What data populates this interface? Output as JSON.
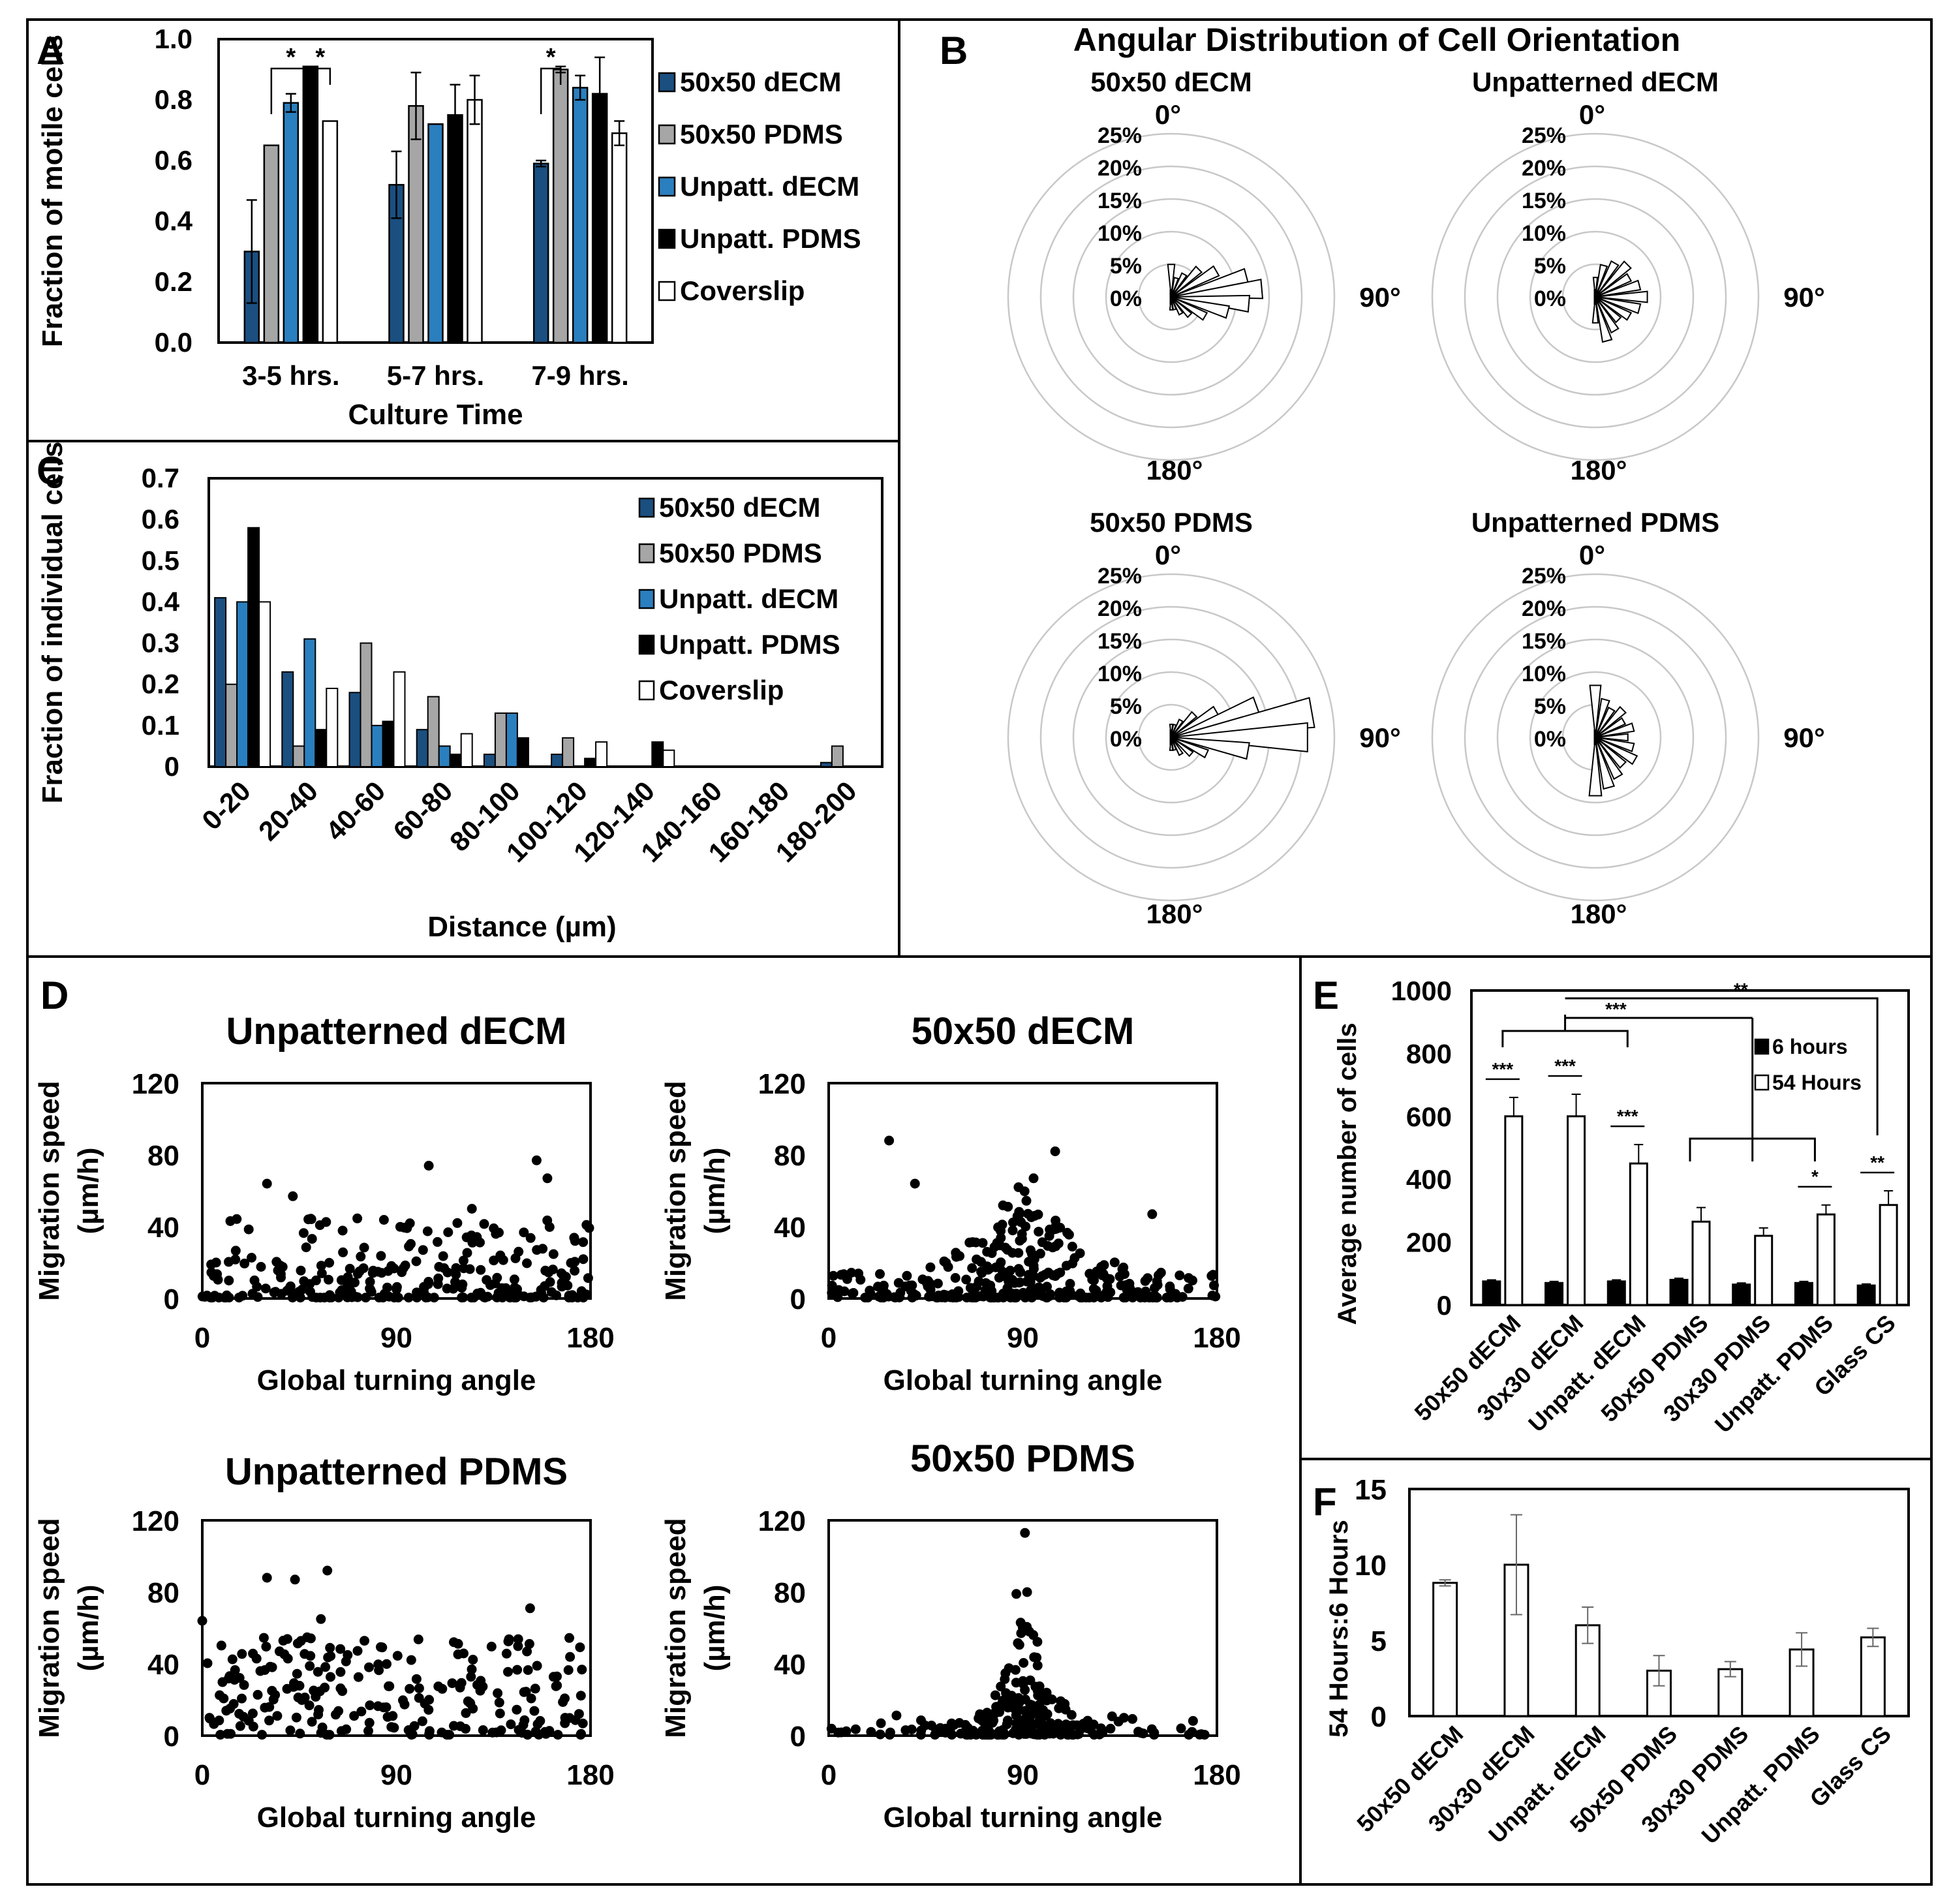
{
  "colors": {
    "dark_blue": "#1a4f80",
    "gray": "#a6a6a6",
    "light_blue": "#2a7fbf",
    "black": "#000000",
    "white": "#ffffff",
    "grid": "#c8c8c8"
  },
  "chart_data": [
    {
      "panel_letter": "A",
      "type": "bar",
      "ylabel": "Fraction of motile cells",
      "xlabel": "Culture Time",
      "ylim": [
        0,
        1.0
      ],
      "yticks": [
        "1.0",
        "0.8",
        "0.6",
        "0.4",
        "0.2",
        "0.0"
      ],
      "categories": [
        "3-5 hrs.",
        "5-7 hrs.",
        "7-9 hrs."
      ],
      "series": [
        {
          "name": "50x50 dECM",
          "color": "dark_blue",
          "values": [
            0.3,
            0.52,
            0.59
          ],
          "errors": [
            0.17,
            0.11,
            0.01
          ]
        },
        {
          "name": "50x50 PDMS",
          "color": "gray",
          "values": [
            0.65,
            0.78,
            0.9
          ],
          "errors": [
            0.0,
            0.11,
            0.01
          ]
        },
        {
          "name": "Unpatt. dECM",
          "color": "light_blue",
          "values": [
            0.79,
            0.72,
            0.84
          ],
          "errors": [
            0.03,
            0.0,
            0.04
          ]
        },
        {
          "name": "Unpatt. PDMS",
          "color": "black",
          "values": [
            0.91,
            0.75,
            0.82
          ],
          "errors": [
            0.0,
            0.1,
            0.12
          ]
        },
        {
          "name": "Coverslip",
          "color": "white",
          "values": [
            0.73,
            0.8,
            0.69
          ],
          "errors": [
            0.0,
            0.08,
            0.04
          ]
        }
      ],
      "significance": [
        "*",
        "*",
        "*"
      ]
    },
    {
      "panel_letter": "C",
      "type": "bar",
      "ylabel": "Fraction of individual cells",
      "xlabel": "Distance (µm)",
      "ylim": [
        0,
        0.7
      ],
      "yticks": [
        "0.7",
        "0.6",
        "0.5",
        "0.4",
        "0.3",
        "0.2",
        "0.1",
        "0"
      ],
      "categories": [
        "0-20",
        "20-40",
        "40-60",
        "60-80",
        "80-100",
        "100-120",
        "120-140",
        "140-160",
        "160-180",
        "180-200"
      ],
      "series": [
        {
          "name": "50x50 dECM",
          "color": "dark_blue",
          "values": [
            0.41,
            0.23,
            0.18,
            0.09,
            0.03,
            0.03,
            0.0,
            0.0,
            0.0,
            0.01
          ]
        },
        {
          "name": "50x50 PDMS",
          "color": "gray",
          "values": [
            0.2,
            0.05,
            0.3,
            0.17,
            0.13,
            0.07,
            0.0,
            0.0,
            0.0,
            0.05
          ]
        },
        {
          "name": "Unpatt. dECM",
          "color": "light_blue",
          "values": [
            0.4,
            0.31,
            0.1,
            0.05,
            0.13,
            0.0,
            0.0,
            0.0,
            0.0,
            0.0
          ]
        },
        {
          "name": "Unpatt. PDMS",
          "color": "black",
          "values": [
            0.58,
            0.09,
            0.11,
            0.03,
            0.07,
            0.02,
            0.06,
            0.0,
            0.0,
            0.0
          ]
        },
        {
          "name": "Coverslip",
          "color": "white",
          "values": [
            0.4,
            0.19,
            0.23,
            0.08,
            0.0,
            0.06,
            0.04,
            0.0,
            0.0,
            0.0
          ]
        }
      ]
    },
    {
      "panel_letter": "B",
      "type": "polar-rose",
      "title": "Angular Distribution of Cell Orientation",
      "ring_labels": [
        "25%",
        "20%",
        "15%",
        "10%",
        "5%",
        "0%"
      ],
      "angle_labels": {
        "top": "0°",
        "right": "90°",
        "bottom": "180°"
      },
      "rmax": 25,
      "roses": [
        {
          "title": "50x50 dECM",
          "petals": [
            [
              0,
              5
            ],
            [
              15,
              3
            ],
            [
              30,
              4
            ],
            [
              45,
              6
            ],
            [
              60,
              8
            ],
            [
              75,
              12
            ],
            [
              85,
              14
            ],
            [
              95,
              12
            ],
            [
              105,
              9
            ],
            [
              120,
              6
            ],
            [
              135,
              4
            ],
            [
              150,
              3
            ],
            [
              165,
              2
            ],
            [
              180,
              2
            ]
          ]
        },
        {
          "title": "Unpatterned dECM",
          "petals": [
            [
              0,
              3
            ],
            [
              15,
              5
            ],
            [
              30,
              6
            ],
            [
              45,
              7
            ],
            [
              60,
              6
            ],
            [
              75,
              7
            ],
            [
              90,
              8
            ],
            [
              105,
              7
            ],
            [
              120,
              6
            ],
            [
              135,
              5
            ],
            [
              150,
              6
            ],
            [
              165,
              7
            ],
            [
              180,
              4
            ]
          ]
        },
        {
          "title": "50x50 PDMS",
          "petals": [
            [
              0,
              2
            ],
            [
              15,
              2
            ],
            [
              30,
              3
            ],
            [
              45,
              5
            ],
            [
              60,
              8
            ],
            [
              70,
              14
            ],
            [
              80,
              22
            ],
            [
              90,
              21
            ],
            [
              100,
              12
            ],
            [
              115,
              6
            ],
            [
              130,
              4
            ],
            [
              150,
              3
            ],
            [
              165,
              2
            ],
            [
              180,
              2
            ]
          ]
        },
        {
          "title": "Unpatterned PDMS",
          "petals": [
            [
              0,
              8
            ],
            [
              15,
              6
            ],
            [
              30,
              5
            ],
            [
              45,
              6
            ],
            [
              60,
              5
            ],
            [
              75,
              6
            ],
            [
              90,
              5
            ],
            [
              105,
              6
            ],
            [
              120,
              7
            ],
            [
              135,
              6
            ],
            [
              150,
              7
            ],
            [
              165,
              8
            ],
            [
              180,
              9
            ]
          ]
        }
      ]
    },
    {
      "panel_letter": "D",
      "type": "scatter",
      "xlabel": "Global turning angle",
      "ylabel": "Migration speed (µm/h)",
      "xlim": [
        0,
        180
      ],
      "ylim": [
        0,
        120
      ],
      "xticks": [
        "0",
        "90",
        "180"
      ],
      "yticks": [
        "120",
        "80",
        "40",
        "0"
      ],
      "plots": [
        {
          "title": "Unpatterned dECM",
          "pattern": "uniform",
          "n": 260,
          "seed": 11,
          "outliers": [
            [
              30,
              64
            ],
            [
              42,
              57
            ],
            [
              105,
              74
            ],
            [
              155,
              77
            ],
            [
              160,
              67
            ],
            [
              125,
              50
            ]
          ]
        },
        {
          "title": "50x50 dECM",
          "pattern": "peak",
          "n": 330,
          "seed": 23,
          "outliers": [
            [
              28,
              88
            ],
            [
              105,
              82
            ],
            [
              95,
              67
            ],
            [
              88,
              62
            ],
            [
              40,
              64
            ],
            [
              150,
              47
            ]
          ]
        },
        {
          "title": "Unpatterned PDMS",
          "pattern": "uniform-high",
          "n": 230,
          "seed": 37,
          "outliers": [
            [
              30,
              88
            ],
            [
              43,
              87
            ],
            [
              58,
              92
            ],
            [
              0,
              64
            ],
            [
              55,
              65
            ],
            [
              152,
              71
            ]
          ]
        },
        {
          "title": "50x50 PDMS",
          "pattern": "narrow-peak",
          "n": 260,
          "seed": 53,
          "outliers": [
            [
              91,
              113
            ],
            [
              87,
              79
            ],
            [
              92,
              80
            ],
            [
              89,
              63
            ],
            [
              93,
              58
            ]
          ]
        }
      ]
    },
    {
      "panel_letter": "E",
      "type": "bar",
      "ylabel": "Average number of cells",
      "ylim": [
        0,
        1000
      ],
      "yticks": [
        "1000",
        "800",
        "600",
        "400",
        "200",
        "0"
      ],
      "categories": [
        "50x50 dECM",
        "30x30 dECM",
        "Unpatt. dECM",
        "50x50 PDMS",
        "30x30 PDMS",
        "Unpatt. PDMS",
        "Glass CS"
      ],
      "series": [
        {
          "name": "6 hours",
          "color": "black",
          "values": [
            75,
            70,
            75,
            80,
            65,
            70,
            62
          ],
          "errors": [
            5,
            5,
            5,
            5,
            5,
            5,
            5
          ]
        },
        {
          "name": "54 Hours",
          "color": "white",
          "values": [
            600,
            600,
            450,
            265,
            220,
            288,
            318
          ],
          "errors": [
            60,
            70,
            60,
            45,
            25,
            30,
            45
          ]
        }
      ],
      "significance": [
        "***",
        "***",
        "***",
        "*",
        "**",
        "***",
        "**"
      ]
    },
    {
      "panel_letter": "F",
      "type": "bar",
      "ylabel": "54 Hours:6 Hours",
      "ylim": [
        0,
        15
      ],
      "yticks": [
        "15",
        "10",
        "5",
        "0"
      ],
      "categories": [
        "50x50 dECM",
        "30x30 dECM",
        "Unpatt. dECM",
        "50x50 PDMS",
        "30x30 PDMS",
        "Unpatt. PDMS",
        "Glass CS"
      ],
      "series": [
        {
          "name": "Ratio",
          "color": "white",
          "values": [
            8.8,
            10.0,
            6.0,
            3.0,
            3.1,
            4.4,
            5.2
          ],
          "errors": [
            0.2,
            3.3,
            1.2,
            1.0,
            0.5,
            1.1,
            0.6
          ]
        }
      ]
    }
  ]
}
